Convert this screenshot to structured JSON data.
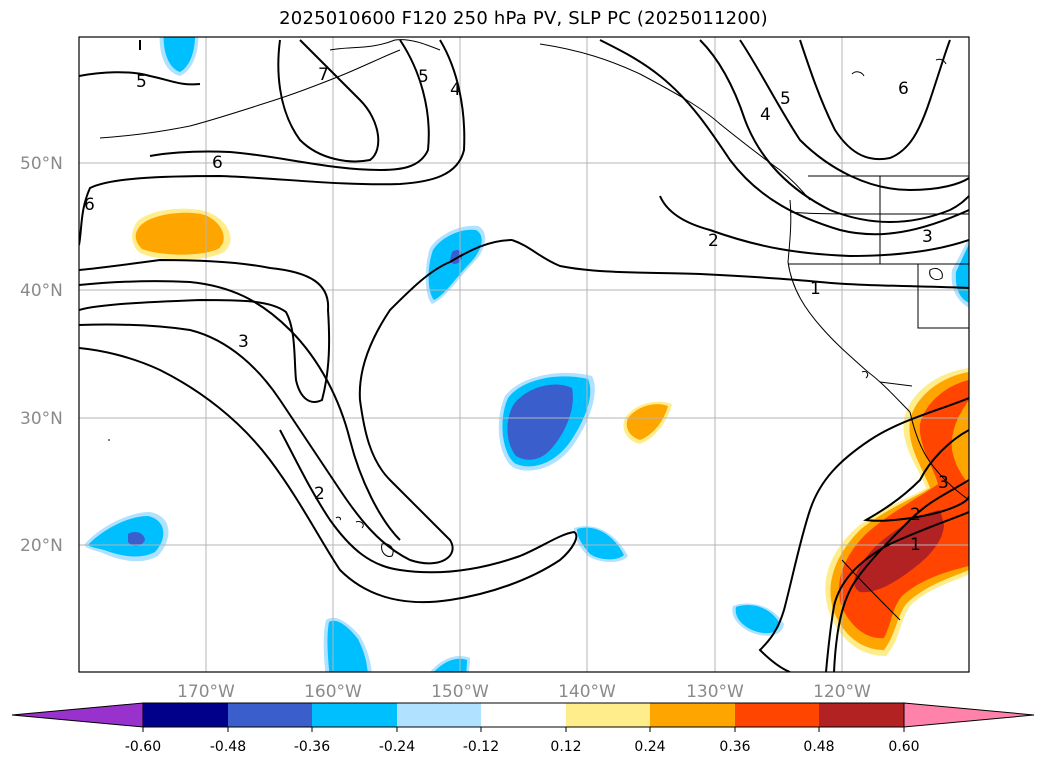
{
  "title": "2025010600 F120 250 hPa PV, SLP PC (2025011200)",
  "map": {
    "lat_labels": [
      "50°N",
      "40°N",
      "30°N",
      "20°N"
    ],
    "lon_labels": [
      "170°W",
      "160°W",
      "150°W",
      "140°W",
      "130°W",
      "120°W"
    ],
    "contour_labels": [
      "5",
      "7",
      "4",
      "5",
      "4",
      "6",
      "6",
      "5",
      "6",
      "2",
      "3",
      "1",
      "3",
      "2",
      "2",
      "1",
      "3"
    ]
  },
  "colorbar": {
    "ticks": [
      "-0.60",
      "-0.48",
      "-0.36",
      "-0.24",
      "-0.12",
      "0.12",
      "0.24",
      "0.36",
      "0.48",
      "0.60"
    ],
    "colors": [
      "#9932cc",
      "#00008b",
      "#3a5fcd",
      "#00bfff",
      "#b0e2ff",
      "#ffffff",
      "#ffec8b",
      "#ffa500",
      "#ff4500",
      "#b22222",
      "#ff82ab"
    ]
  }
}
